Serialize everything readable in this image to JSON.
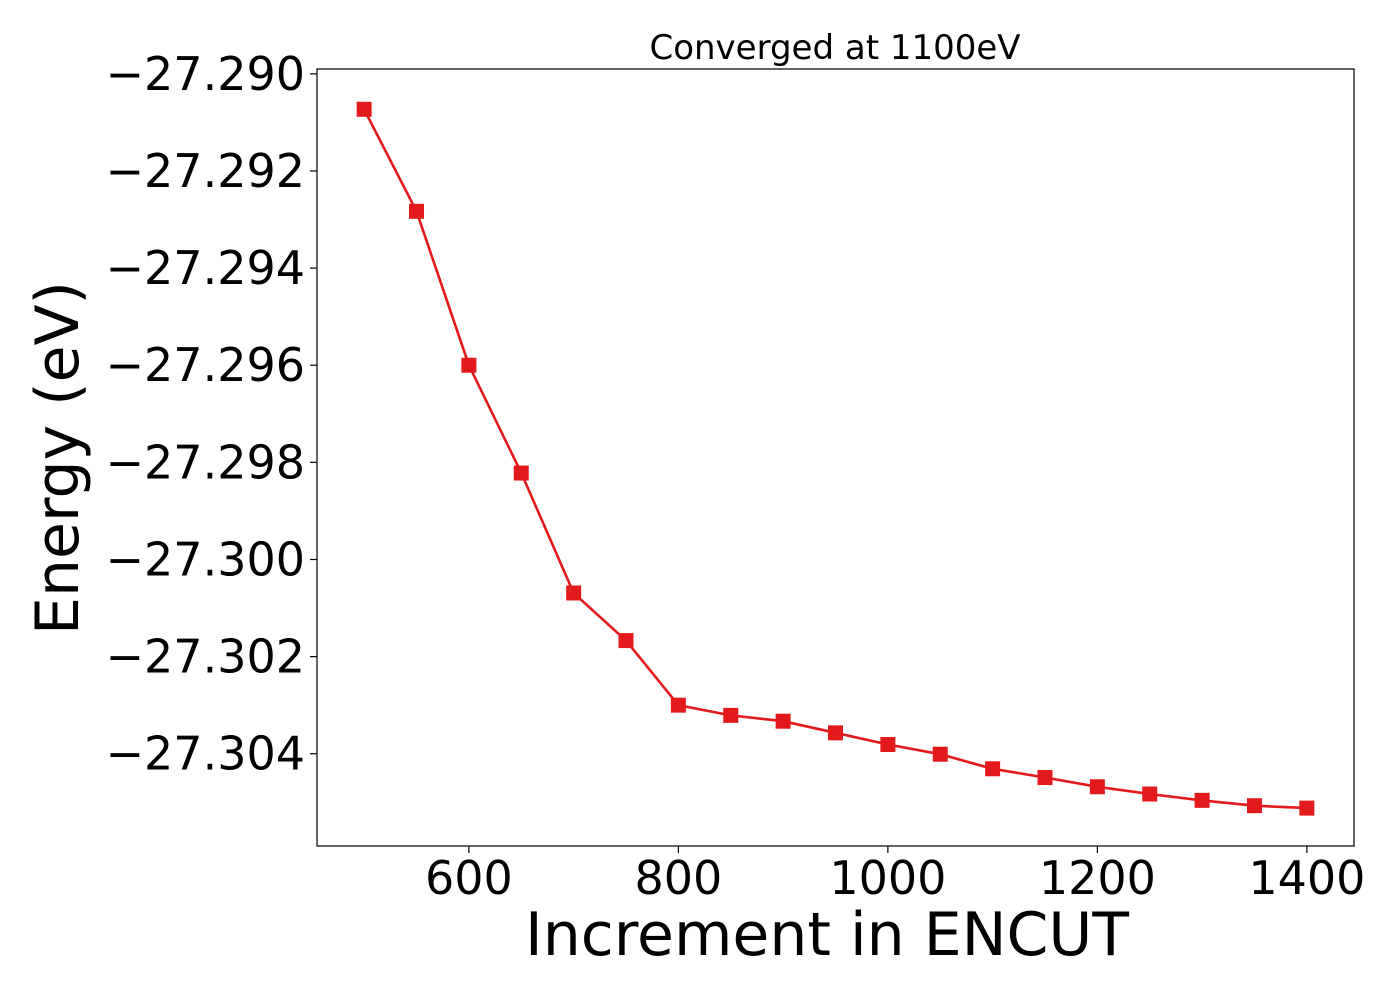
{
  "chart_data": {
    "type": "line",
    "title": "Converged at 1100eV",
    "xlabel": "Increment in ENCUT",
    "ylabel": "Energy (eV)",
    "xlim": [
      455,
      1445
    ],
    "ylim": [
      -27.3059,
      -27.2899
    ],
    "x_ticks": [
      600,
      800,
      1000,
      1200,
      1400
    ],
    "x_tick_labels": [
      "600",
      "800",
      "1000",
      "1200",
      "1400"
    ],
    "y_ticks": [
      -27.29,
      -27.292,
      -27.294,
      -27.296,
      -27.298,
      -27.3,
      -27.302,
      -27.304
    ],
    "y_tick_labels": [
      "−27.290",
      "−27.292",
      "−27.294",
      "−27.296",
      "−27.298",
      "−27.300",
      "−27.302",
      "−27.304"
    ],
    "grid": false,
    "series": [
      {
        "color": "#e31a1c",
        "marker": "square",
        "x": [
          500,
          550,
          600,
          650,
          700,
          750,
          800,
          850,
          900,
          950,
          1000,
          1050,
          1100,
          1150,
          1200,
          1250,
          1300,
          1350,
          1400
        ],
        "y": [
          -27.29073,
          -27.29283,
          -27.296,
          -27.29822,
          -27.30069,
          -27.30167,
          -27.303,
          -27.30321,
          -27.30333,
          -27.30357,
          -27.30381,
          -27.30401,
          -27.30431,
          -27.30449,
          -27.30468,
          -27.30483,
          -27.30496,
          -27.30507,
          -27.30512
        ]
      }
    ]
  }
}
